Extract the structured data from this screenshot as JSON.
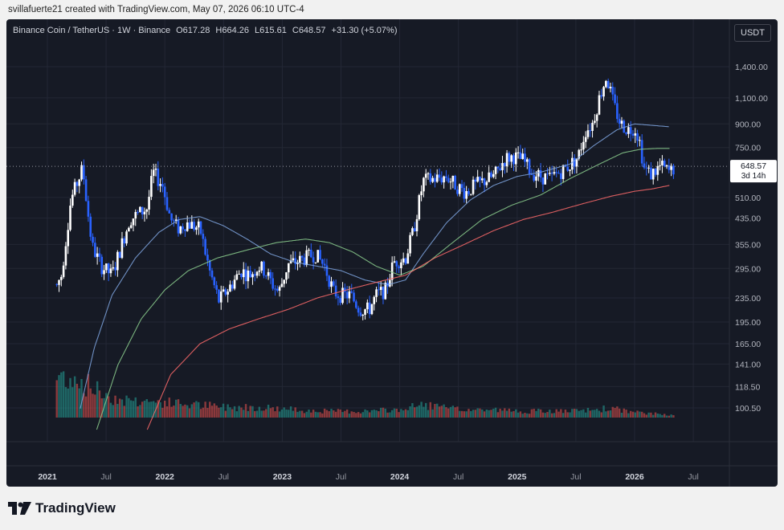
{
  "caption": "svillafuerte21 created with TradingView.com, May 07, 2026 06:10 UTC-4",
  "legend": {
    "symbol": "Binance Coin / TetherUS · 1W · Binance",
    "open": "O617.28",
    "high": "H664.26",
    "low": "L615.61",
    "close": "C648.57",
    "change": "+31.30 (+5.07%)"
  },
  "currency_button": "USDT",
  "price_label": {
    "value": "648.57",
    "countdown": "3d 14h"
  },
  "brand": "TradingView",
  "colors": {
    "background": "#161a25",
    "grid": "#232735",
    "candle_up": "#ffffff",
    "candle_down": "#2962ff",
    "vol_up": "#26a69a",
    "vol_down": "#ef5350",
    "ma_blue": "#7fa6e0",
    "ma_green": "#8ccf8e",
    "ma_red": "#ff6b6b"
  },
  "chart_data": {
    "type": "candlestick",
    "title": "Binance Coin / TetherUS · 1W · Binance",
    "y_scale": "log",
    "ylim": [
      92,
      1800
    ],
    "grid": true,
    "y_ticks": [
      100.5,
      118.5,
      141,
      165,
      195,
      235,
      295,
      355,
      435,
      510,
      750,
      900,
      1100,
      1400
    ],
    "y_tick_labels": [
      "100.50",
      "118.50",
      "141.00",
      "165.00",
      "195.00",
      "235.00",
      "295.00",
      "355.00",
      "435.00",
      "510.00",
      "750.00",
      "900.00",
      "1,100.00",
      "1,400.00"
    ],
    "x_ticks": [
      {
        "label": "2021",
        "t": 2021.0,
        "bold": true
      },
      {
        "label": "Jul",
        "t": 2021.5,
        "bold": false
      },
      {
        "label": "2022",
        "t": 2022.0,
        "bold": true
      },
      {
        "label": "Jul",
        "t": 2022.5,
        "bold": false
      },
      {
        "label": "2023",
        "t": 2023.0,
        "bold": true
      },
      {
        "label": "Jul",
        "t": 2023.5,
        "bold": false
      },
      {
        "label": "2024",
        "t": 2024.0,
        "bold": true
      },
      {
        "label": "Jul",
        "t": 2024.5,
        "bold": false
      },
      {
        "label": "2025",
        "t": 2025.0,
        "bold": true
      },
      {
        "label": "Jul",
        "t": 2025.5,
        "bold": false
      },
      {
        "label": "2026",
        "t": 2026.0,
        "bold": true
      },
      {
        "label": "Jul",
        "t": 2026.5,
        "bold": false
      }
    ],
    "last_close": 648.57,
    "price_path": [
      [
        2020.75,
        30
      ],
      [
        2021.08,
        260
      ],
      [
        2021.12,
        280
      ],
      [
        2021.2,
        500
      ],
      [
        2021.3,
        640
      ],
      [
        2021.38,
        350
      ],
      [
        2021.46,
        300
      ],
      [
        2021.55,
        280
      ],
      [
        2021.7,
        430
      ],
      [
        2021.85,
        470
      ],
      [
        2021.9,
        620
      ],
      [
        2021.98,
        560
      ],
      [
        2022.05,
        430
      ],
      [
        2022.12,
        400
      ],
      [
        2022.18,
        420
      ],
      [
        2022.3,
        400
      ],
      [
        2022.38,
        290
      ],
      [
        2022.46,
        230
      ],
      [
        2022.55,
        255
      ],
      [
        2022.65,
        290
      ],
      [
        2022.72,
        280
      ],
      [
        2022.8,
        300
      ],
      [
        2022.85,
        290
      ],
      [
        2022.92,
        260
      ],
      [
        2022.97,
        245
      ],
      [
        2023.05,
        305
      ],
      [
        2023.12,
        310
      ],
      [
        2023.2,
        320
      ],
      [
        2023.28,
        330
      ],
      [
        2023.36,
        300
      ],
      [
        2023.44,
        245
      ],
      [
        2023.5,
        240
      ],
      [
        2023.58,
        240
      ],
      [
        2023.66,
        215
      ],
      [
        2023.74,
        215
      ],
      [
        2023.8,
        240
      ],
      [
        2023.88,
        250
      ],
      [
        2023.95,
        310
      ],
      [
        2024.05,
        320
      ],
      [
        2024.12,
        400
      ],
      [
        2024.2,
        580
      ],
      [
        2024.3,
        590
      ],
      [
        2024.4,
        600
      ],
      [
        2024.48,
        560
      ],
      [
        2024.56,
        530
      ],
      [
        2024.64,
        560
      ],
      [
        2024.72,
        580
      ],
      [
        2024.8,
        600
      ],
      [
        2024.9,
        690
      ],
      [
        2024.97,
        700
      ],
      [
        2025.05,
        680
      ],
      [
        2025.12,
        620
      ],
      [
        2025.2,
        600
      ],
      [
        2025.28,
        590
      ],
      [
        2025.36,
        620
      ],
      [
        2025.44,
        650
      ],
      [
        2025.52,
        700
      ],
      [
        2025.58,
        850
      ],
      [
        2025.64,
        900
      ],
      [
        2025.7,
        1100
      ],
      [
        2025.76,
        1300
      ],
      [
        2025.82,
        1050
      ],
      [
        2025.88,
        900
      ],
      [
        2025.95,
        860
      ],
      [
        2026.0,
        880
      ],
      [
        2026.04,
        800
      ],
      [
        2026.08,
        640
      ],
      [
        2026.14,
        610
      ],
      [
        2026.22,
        650
      ],
      [
        2026.3,
        620
      ],
      [
        2026.35,
        648
      ]
    ],
    "ma_blue_path": [
      [
        2021.28,
        100
      ],
      [
        2021.4,
        160
      ],
      [
        2021.55,
        240
      ],
      [
        2021.75,
        320
      ],
      [
        2021.95,
        390
      ],
      [
        2022.12,
        430
      ],
      [
        2022.3,
        440
      ],
      [
        2022.5,
        410
      ],
      [
        2022.7,
        370
      ],
      [
        2022.9,
        330
      ],
      [
        2023.1,
        310
      ],
      [
        2023.3,
        300
      ],
      [
        2023.5,
        290
      ],
      [
        2023.7,
        270
      ],
      [
        2023.9,
        260
      ],
      [
        2024.05,
        270
      ],
      [
        2024.2,
        330
      ],
      [
        2024.4,
        420
      ],
      [
        2024.6,
        500
      ],
      [
        2024.8,
        560
      ],
      [
        2025.0,
        600
      ],
      [
        2025.2,
        620
      ],
      [
        2025.45,
        660
      ],
      [
        2025.65,
        760
      ],
      [
        2025.85,
        860
      ],
      [
        2026.0,
        900
      ],
      [
        2026.15,
        890
      ],
      [
        2026.3,
        880
      ]
    ],
    "ma_green_path": [
      [
        2021.42,
        85
      ],
      [
        2021.6,
        140
      ],
      [
        2021.8,
        200
      ],
      [
        2022.0,
        250
      ],
      [
        2022.2,
        290
      ],
      [
        2022.45,
        320
      ],
      [
        2022.7,
        340
      ],
      [
        2022.95,
        360
      ],
      [
        2023.2,
        370
      ],
      [
        2023.4,
        360
      ],
      [
        2023.6,
        335
      ],
      [
        2023.8,
        300
      ],
      [
        2024.0,
        280
      ],
      [
        2024.2,
        300
      ],
      [
        2024.45,
        360
      ],
      [
        2024.7,
        430
      ],
      [
        2024.95,
        480
      ],
      [
        2025.2,
        520
      ],
      [
        2025.45,
        590
      ],
      [
        2025.7,
        660
      ],
      [
        2025.9,
        720
      ],
      [
        2026.05,
        740
      ],
      [
        2026.2,
        745
      ],
      [
        2026.3,
        745
      ]
    ],
    "ma_red_path": [
      [
        2021.85,
        85
      ],
      [
        2022.05,
        130
      ],
      [
        2022.3,
        165
      ],
      [
        2022.55,
        185
      ],
      [
        2022.8,
        200
      ],
      [
        2023.05,
        215
      ],
      [
        2023.3,
        235
      ],
      [
        2023.55,
        250
      ],
      [
        2023.8,
        265
      ],
      [
        2024.05,
        280
      ],
      [
        2024.3,
        320
      ],
      [
        2024.55,
        355
      ],
      [
        2024.8,
        395
      ],
      [
        2025.05,
        430
      ],
      [
        2025.3,
        455
      ],
      [
        2025.55,
        485
      ],
      [
        2025.8,
        515
      ],
      [
        2026.0,
        535
      ],
      [
        2026.15,
        545
      ],
      [
        2026.3,
        560
      ]
    ],
    "volume_profile": [
      [
        2020.75,
        0.9
      ],
      [
        2021.0,
        0.7
      ],
      [
        2021.2,
        0.8
      ],
      [
        2021.35,
        0.6
      ],
      [
        2021.6,
        0.35
      ],
      [
        2021.9,
        0.3
      ],
      [
        2022.2,
        0.25
      ],
      [
        2022.5,
        0.2
      ],
      [
        2022.8,
        0.2
      ],
      [
        2023.1,
        0.15
      ],
      [
        2023.4,
        0.12
      ],
      [
        2023.7,
        0.12
      ],
      [
        2024.0,
        0.15
      ],
      [
        2024.2,
        0.25
      ],
      [
        2024.5,
        0.15
      ],
      [
        2024.8,
        0.15
      ],
      [
        2025.0,
        0.12
      ],
      [
        2025.5,
        0.12
      ],
      [
        2025.8,
        0.18
      ],
      [
        2026.0,
        0.1
      ],
      [
        2026.35,
        0.05
      ]
    ]
  }
}
